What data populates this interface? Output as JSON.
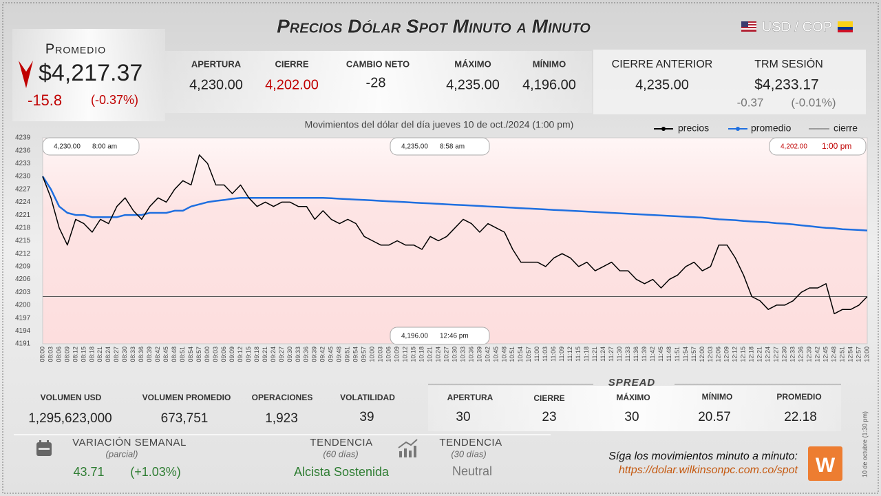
{
  "header": {
    "title": "Precios Dólar Spot Minuto a Minuto",
    "pair": "USD / COP"
  },
  "promedio": {
    "label": "Promedio",
    "value": "$4,217.37",
    "change": "-15.8",
    "change_pct": "(-0.37%)"
  },
  "session": [
    {
      "label": "APERTURA",
      "value": "4,230.00"
    },
    {
      "label": "CIERRE",
      "value": "4,202.00"
    },
    {
      "label": "CAMBIO NETO",
      "value": "-28"
    },
    {
      "label": "MÁXIMO",
      "value": "4,235.00"
    },
    {
      "label": "MÍNIMO",
      "value": "4,196.00"
    }
  ],
  "previous_close": {
    "label": "CIERRE ANTERIOR",
    "value": "4,235.00"
  },
  "trm": {
    "label": "TRM SESIÓN",
    "value": "$4,233.17",
    "change": "-0.37",
    "change_pct": "(-0.01%)"
  },
  "chart_data": {
    "type": "line",
    "subtitle": "Movimientos del dólar del día jueves 10 de oct./2024 (1:00 pm)",
    "categories": [
      "08:00",
      "08:03",
      "08:06",
      "08:09",
      "08:12",
      "08:15",
      "08:18",
      "08:21",
      "08:24",
      "08:27",
      "08:30",
      "08:33",
      "08:36",
      "08:39",
      "08:42",
      "08:45",
      "08:48",
      "08:51",
      "08:54",
      "08:57",
      "09:00",
      "09:03",
      "09:06",
      "09:09",
      "09:12",
      "09:15",
      "09:18",
      "09:21",
      "09:24",
      "09:27",
      "09:30",
      "09:33",
      "09:36",
      "09:39",
      "09:42",
      "09:45",
      "09:48",
      "09:51",
      "09:54",
      "09:57",
      "10:00",
      "10:03",
      "10:06",
      "10:09",
      "10:12",
      "10:15",
      "10:18",
      "10:21",
      "10:24",
      "10:27",
      "10:30",
      "10:33",
      "10:36",
      "10:39",
      "10:42",
      "10:45",
      "10:48",
      "10:51",
      "10:54",
      "10:57",
      "11:00",
      "11:03",
      "11:06",
      "11:09",
      "11:12",
      "11:15",
      "11:18",
      "11:21",
      "11:24",
      "11:27",
      "11:30",
      "11:33",
      "11:36",
      "11:39",
      "11:42",
      "11:45",
      "11:48",
      "11:51",
      "11:54",
      "11:57",
      "12:00",
      "12:03",
      "12:06",
      "12:09",
      "12:12",
      "12:15",
      "12:18",
      "12:21",
      "12:24",
      "12:27",
      "12:30",
      "12:33",
      "12:36",
      "12:39",
      "12:42",
      "12:45",
      "12:48",
      "12:51",
      "12:54",
      "12:57",
      "13:00"
    ],
    "series": [
      {
        "name": "precios",
        "color": "#000000",
        "values": [
          4230,
          4225,
          4218,
          4214,
          4220,
          4219,
          4217,
          4220,
          4219,
          4223,
          4225,
          4222,
          4220,
          4223,
          4225,
          4224,
          4227,
          4229,
          4228,
          4235,
          4233,
          4228,
          4228,
          4226,
          4228,
          4225,
          4223,
          4224,
          4223,
          4224,
          4224,
          4223,
          4223,
          4220,
          4222,
          4220,
          4219,
          4220,
          4219,
          4216,
          4215,
          4214,
          4214,
          4215,
          4214,
          4214,
          4213,
          4216,
          4215,
          4216,
          4218,
          4220,
          4219,
          4217,
          4219,
          4218,
          4217,
          4213,
          4210,
          4210,
          4210,
          4209,
          4211,
          4212,
          4211,
          4209,
          4210,
          4208,
          4209,
          4210,
          4208,
          4208,
          4206,
          4205,
          4206,
          4204,
          4206,
          4207,
          4209,
          4210,
          4208,
          4209,
          4214,
          4214,
          4211,
          4207,
          4202,
          4201,
          4199,
          4200,
          4200,
          4201,
          4203,
          4204,
          4204,
          4205,
          4198,
          4199,
          4199,
          4200,
          4202
        ]
      },
      {
        "name": "promedio",
        "color": "#1e6fe0",
        "values": [
          4230,
          4227,
          4223,
          4221.5,
          4221,
          4221,
          4220.5,
          4220.5,
          4220.5,
          4220.5,
          4221,
          4221,
          4221,
          4221.5,
          4221.5,
          4221.5,
          4222,
          4222,
          4223,
          4223.5,
          4224,
          4224.3,
          4224.5,
          4224.8,
          4225,
          4225,
          4225,
          4225,
          4225,
          4225,
          4225,
          4225,
          4225,
          4225,
          4225,
          4224.9,
          4224.8,
          4224.7,
          4224.6,
          4224.5,
          4224.4,
          4224.3,
          4224.2,
          4224.1,
          4224,
          4223.9,
          4223.8,
          4223.7,
          4223.6,
          4223.5,
          4223.4,
          4223.3,
          4223.2,
          4223.1,
          4223,
          4222.9,
          4222.8,
          4222.7,
          4222.6,
          4222.5,
          4222.4,
          4222.3,
          4222.2,
          4222.1,
          4222,
          4221.9,
          4221.8,
          4221.7,
          4221.6,
          4221.5,
          4221.4,
          4221.3,
          4221.2,
          4221.1,
          4221,
          4220.9,
          4220.8,
          4220.7,
          4220.6,
          4220.5,
          4220.4,
          4220.2,
          4220,
          4219.9,
          4219.8,
          4219.6,
          4219.5,
          4219.4,
          4219.3,
          4219.1,
          4219,
          4218.8,
          4218.6,
          4218.4,
          4218.2,
          4218,
          4217.9,
          4217.7,
          4217.6,
          4217.5,
          4217.4
        ]
      }
    ],
    "close_line": {
      "name": "cierre",
      "value": 4202,
      "color": "#555555"
    },
    "ylim": [
      4191,
      4239
    ],
    "yticks": [
      4191,
      4194,
      4197,
      4200,
      4203,
      4206,
      4209,
      4212,
      4215,
      4218,
      4221,
      4224,
      4227,
      4230,
      4233,
      4236,
      4239
    ],
    "annotations": [
      {
        "price": "4,230.00",
        "time": "8:00 am"
      },
      {
        "price": "4,235.00",
        "time": "8:58 am"
      },
      {
        "price": "4,202.00",
        "time": "1:00 pm"
      },
      {
        "price": "4,196.00",
        "time": "12:46 pm"
      }
    ]
  },
  "volume": [
    {
      "label": "VOLUMEN USD",
      "value": "1,295,623,000"
    },
    {
      "label": "VOLUMEN PROMEDIO",
      "value": "673,751"
    },
    {
      "label": "OPERACIONES",
      "value": "1,923"
    },
    {
      "label": "VOLATILIDAD",
      "value": "39"
    }
  ],
  "spread": {
    "title": "SPREAD",
    "items": [
      {
        "label": "APERTURA",
        "value": "30"
      },
      {
        "label": "CIERRE",
        "value": "23"
      },
      {
        "label": "MÁXIMO",
        "value": "30"
      },
      {
        "label": "MÍNIMO",
        "value": "20.57"
      },
      {
        "label": "PROMEDIO",
        "value": "22.18"
      }
    ]
  },
  "weekly": {
    "label": "VARIACIÓN SEMANAL",
    "note": "(parcial)",
    "value": "43.71",
    "pct": "(+1.03%)"
  },
  "trend60": {
    "label": "TENDENCIA",
    "note": "(60 días)",
    "value": "Alcista Sostenida"
  },
  "trend30": {
    "label": "TENDENCIA",
    "note": "(30 días)",
    "value": "Neutral"
  },
  "footer": {
    "cta": "Síga los movimientos minuto a minuto:",
    "url": "https://dolar.wilkinsonpc.com.co/spot",
    "logo": "W",
    "timestamp": "10 de octubre (1:30 pm)"
  }
}
